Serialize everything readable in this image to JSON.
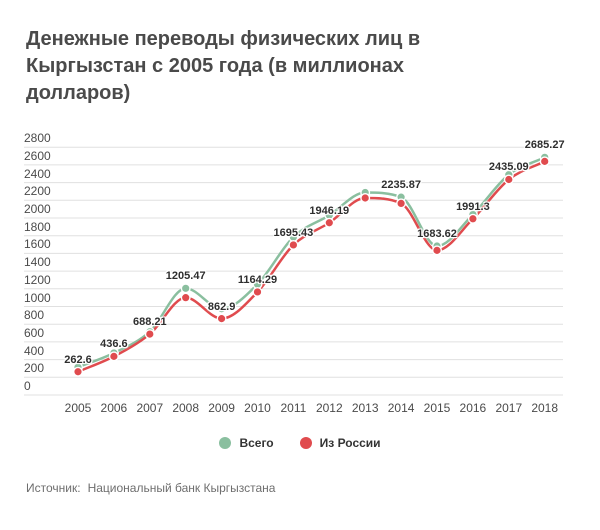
{
  "title": "Денежные переводы физических лиц в Кыргызстан с 2005 года (в миллионах долларов)",
  "source": {
    "label": "Источник:",
    "name": "Национальный банк Кыргызстана"
  },
  "legend": {
    "items": [
      {
        "label": "Всего",
        "color": "#8abf9f"
      },
      {
        "label": "Из России",
        "color": "#e04b4e"
      }
    ]
  },
  "colors": {
    "total_line": "#8abf9f",
    "russia_line": "#e04b4e",
    "grid": "#e0e0e0",
    "axis_text": "#4b4b4b",
    "title_text": "#4a4a4a",
    "point_border": "#ffffff"
  },
  "chart_data": {
    "type": "line",
    "x": [
      2005,
      2006,
      2007,
      2008,
      2009,
      2010,
      2011,
      2012,
      2013,
      2014,
      2015,
      2016,
      2017,
      2018
    ],
    "series": [
      {
        "name": "Всего",
        "color": "#8abf9f",
        "values": [
          314,
          475,
          715,
          1205.47,
          975,
          1252,
          1785,
          2031,
          2288,
          2235.87,
          1683.62,
          2040,
          2490,
          2685.27
        ]
      },
      {
        "name": "Из России",
        "color": "#e04b4e",
        "values": [
          262.6,
          436.6,
          688.21,
          1100,
          862.9,
          1164.29,
          1695.43,
          1946.19,
          2226,
          2165,
          1634,
          1991.3,
          2435.09,
          2640
        ]
      }
    ],
    "point_labels": [
      {
        "year": 2005,
        "text": "262.6",
        "value": 262.6,
        "series": "Из России"
      },
      {
        "year": 2006,
        "text": "436.6",
        "value": 436.6,
        "series": "Из России"
      },
      {
        "year": 2007,
        "text": "688.21",
        "value": 688.21,
        "series": "Из России"
      },
      {
        "year": 2008,
        "text": "1205.47",
        "value": 1205.47,
        "series": "Всего"
      },
      {
        "year": 2009,
        "text": "862.9",
        "value": 862.9,
        "series": "Из России"
      },
      {
        "year": 2010,
        "text": "1164.29",
        "value": 1164.29,
        "series": "Из России"
      },
      {
        "year": 2011,
        "text": "1695.43",
        "value": 1695.43,
        "series": "Из России"
      },
      {
        "year": 2012,
        "text": "1946.19",
        "value": 1946.19,
        "series": "Из России"
      },
      {
        "year": 2014,
        "text": "2235.87",
        "value": 2235.87,
        "series": "Всего"
      },
      {
        "year": 2015,
        "text": "1683.62",
        "value": 1683.62,
        "series": "Всего"
      },
      {
        "year": 2016,
        "text": "1991.3",
        "value": 1991.3,
        "series": "Из России"
      },
      {
        "year": 2017,
        "text": "2435.09",
        "value": 2435.09,
        "series": "Из России"
      },
      {
        "year": 2018,
        "text": "2685.27",
        "value": 2685.27,
        "series": "Всего"
      }
    ],
    "ylim": [
      0,
      2800
    ],
    "ytick_step": 200,
    "grid": true,
    "legend_position": "bottom"
  }
}
